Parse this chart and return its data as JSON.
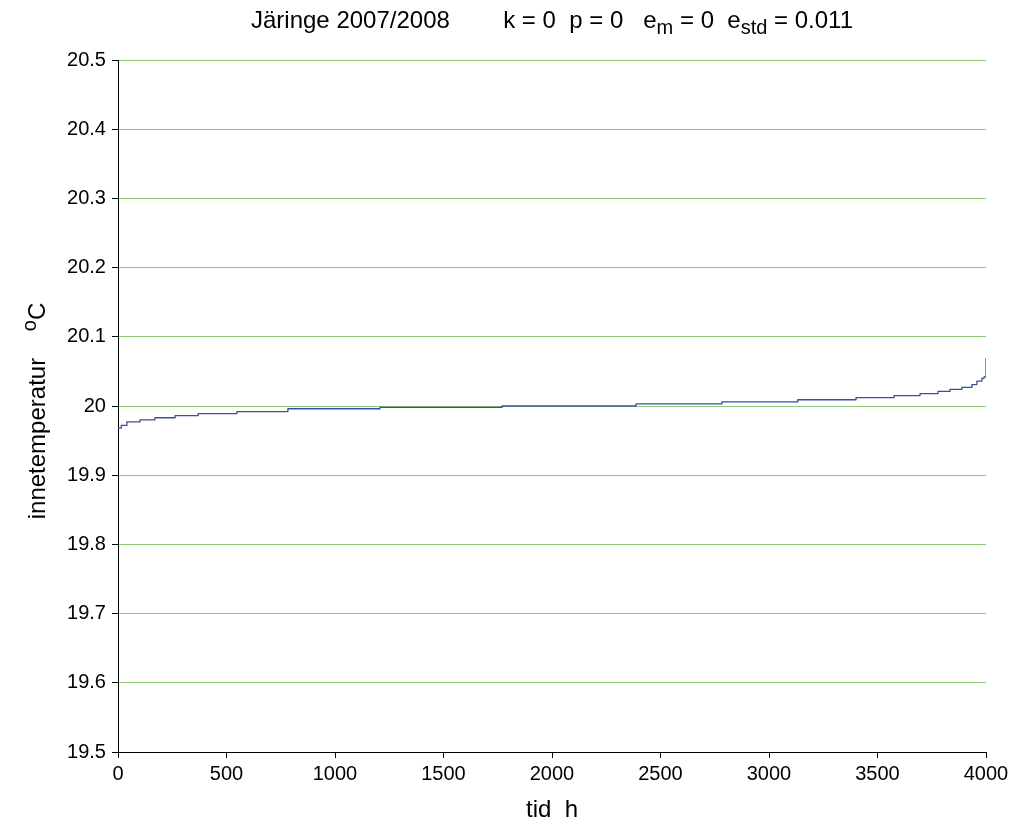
{
  "chart_data": {
    "type": "step",
    "title": "Järinge 2007/2008        k = 0  p = 0   e$_{m}$ = 0  e$_{std}$ = 0.011",
    "xlabel": "tid  h",
    "ylabel": "innetemperatur    $^{o}$C",
    "xlim": [
      0,
      4000
    ],
    "xticks": [
      0,
      500,
      1000,
      1500,
      2000,
      2500,
      3000,
      3500,
      4000
    ],
    "ylim": [
      19.5,
      20.5
    ],
    "yticks": [
      19.5,
      19.6,
      19.7,
      19.8,
      19.9,
      20,
      20.1,
      20.2,
      20.3,
      20.4,
      20.5
    ],
    "grid": "y",
    "legend": false,
    "marker": "none",
    "line_style": "solid",
    "series": [
      {
        "color": "#3a4fa0",
        "x": [
          0,
          15,
          41,
          101,
          170,
          263,
          369,
          548,
          783,
          1207,
          1770,
          2387,
          2783,
          3133,
          3401,
          3576,
          3696,
          3779,
          3834,
          3889,
          3935,
          3958,
          3981,
          3991,
          4000
        ],
        "values": [
          19.968,
          19.972,
          19.977,
          19.98,
          19.983,
          19.986,
          19.989,
          19.992,
          19.996,
          19.998,
          20.0,
          20.003,
          20.006,
          20.009,
          20.012,
          20.015,
          20.018,
          20.021,
          20.024,
          20.027,
          20.031,
          20.036,
          20.04,
          20.042,
          20.069
        ]
      }
    ]
  }
}
